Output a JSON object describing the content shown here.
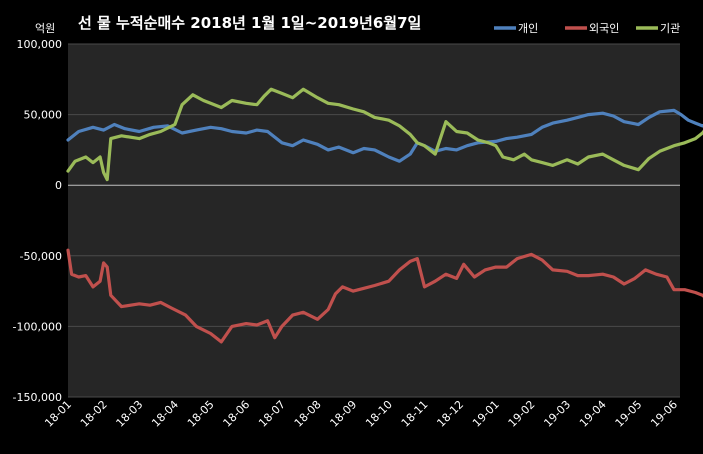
{
  "chart_data": {
    "type": "line",
    "title": "선 물 누적순매수 2018년 1월 1일~2019년6월7일",
    "unit_label": "억원",
    "ylim": [
      -150000,
      100000
    ],
    "yticks": [
      100000,
      50000,
      0,
      -50000,
      -100000,
      -150000
    ],
    "ytick_labels": [
      "100,000",
      "50,000",
      "0",
      "-50,000",
      "-100,000",
      "-150,000"
    ],
    "x_tick_labels": [
      "18-01",
      "18-02",
      "18-03",
      "18-04",
      "18-05",
      "18-06",
      "18-07",
      "18-08",
      "18-09",
      "18-10",
      "18-11",
      "18-12",
      "19-01",
      "19-02",
      "19-03",
      "19-04",
      "19-05",
      "19-06"
    ],
    "grid": true,
    "legend_position": "top-right",
    "series": [
      {
        "name": "개인",
        "color": "#4f81bd",
        "points": [
          [
            0,
            32000
          ],
          [
            0.3,
            38000
          ],
          [
            0.7,
            41000
          ],
          [
            1.0,
            39000
          ],
          [
            1.3,
            43000
          ],
          [
            1.6,
            40000
          ],
          [
            2.0,
            38000
          ],
          [
            2.4,
            41000
          ],
          [
            2.8,
            42000
          ],
          [
            3.2,
            37000
          ],
          [
            3.6,
            39000
          ],
          [
            4.0,
            41000
          ],
          [
            4.3,
            40000
          ],
          [
            4.6,
            38000
          ],
          [
            5.0,
            37000
          ],
          [
            5.3,
            39000
          ],
          [
            5.6,
            38000
          ],
          [
            6.0,
            30000
          ],
          [
            6.3,
            28000
          ],
          [
            6.6,
            32000
          ],
          [
            7.0,
            29000
          ],
          [
            7.3,
            25000
          ],
          [
            7.6,
            27000
          ],
          [
            8.0,
            23000
          ],
          [
            8.3,
            26000
          ],
          [
            8.6,
            25000
          ],
          [
            9.0,
            20000
          ],
          [
            9.3,
            17000
          ],
          [
            9.6,
            22000
          ],
          [
            9.8,
            30000
          ],
          [
            10.0,
            28000
          ],
          [
            10.3,
            24000
          ],
          [
            10.6,
            26000
          ],
          [
            10.9,
            25000
          ],
          [
            11.2,
            28000
          ],
          [
            11.5,
            30000
          ],
          [
            12.0,
            31000
          ],
          [
            12.3,
            33000
          ],
          [
            12.6,
            34000
          ],
          [
            13.0,
            36000
          ],
          [
            13.3,
            41000
          ],
          [
            13.6,
            44000
          ],
          [
            14.0,
            46000
          ],
          [
            14.3,
            48000
          ],
          [
            14.6,
            50000
          ],
          [
            15.0,
            51000
          ],
          [
            15.3,
            49000
          ],
          [
            15.6,
            45000
          ],
          [
            16.0,
            43000
          ],
          [
            16.3,
            48000
          ],
          [
            16.6,
            52000
          ],
          [
            17.0,
            53000
          ],
          [
            17.2,
            50000
          ],
          [
            17.4,
            46000
          ],
          [
            17.6,
            44000
          ],
          [
            17.8,
            42000
          ],
          [
            17.9,
            43000
          ]
        ]
      },
      {
        "name": "외국인",
        "color": "#c0504d",
        "points": [
          [
            0,
            -46000
          ],
          [
            0.1,
            -63000
          ],
          [
            0.3,
            -65000
          ],
          [
            0.5,
            -64000
          ],
          [
            0.7,
            -72000
          ],
          [
            0.9,
            -68000
          ],
          [
            1.0,
            -55000
          ],
          [
            1.1,
            -58000
          ],
          [
            1.2,
            -78000
          ],
          [
            1.5,
            -86000
          ],
          [
            2.0,
            -84000
          ],
          [
            2.3,
            -85000
          ],
          [
            2.6,
            -83000
          ],
          [
            2.9,
            -87000
          ],
          [
            3.3,
            -92000
          ],
          [
            3.6,
            -100000
          ],
          [
            4.0,
            -105000
          ],
          [
            4.3,
            -111000
          ],
          [
            4.6,
            -100000
          ],
          [
            5.0,
            -98000
          ],
          [
            5.3,
            -99000
          ],
          [
            5.6,
            -96000
          ],
          [
            5.8,
            -108000
          ],
          [
            6.0,
            -100000
          ],
          [
            6.3,
            -92000
          ],
          [
            6.6,
            -90000
          ],
          [
            7.0,
            -95000
          ],
          [
            7.3,
            -88000
          ],
          [
            7.5,
            -77000
          ],
          [
            7.7,
            -72000
          ],
          [
            8.0,
            -75000
          ],
          [
            8.3,
            -73000
          ],
          [
            8.6,
            -71000
          ],
          [
            9.0,
            -68000
          ],
          [
            9.3,
            -60000
          ],
          [
            9.6,
            -54000
          ],
          [
            9.8,
            -52000
          ],
          [
            10.0,
            -72000
          ],
          [
            10.3,
            -68000
          ],
          [
            10.6,
            -63000
          ],
          [
            10.9,
            -66000
          ],
          [
            11.1,
            -56000
          ],
          [
            11.4,
            -65000
          ],
          [
            11.7,
            -60000
          ],
          [
            12.0,
            -58000
          ],
          [
            12.3,
            -58000
          ],
          [
            12.6,
            -52000
          ],
          [
            13.0,
            -49000
          ],
          [
            13.3,
            -53000
          ],
          [
            13.6,
            -60000
          ],
          [
            14.0,
            -61000
          ],
          [
            14.3,
            -64000
          ],
          [
            14.6,
            -64000
          ],
          [
            15.0,
            -63000
          ],
          [
            15.3,
            -65000
          ],
          [
            15.6,
            -70000
          ],
          [
            15.9,
            -66000
          ],
          [
            16.2,
            -60000
          ],
          [
            16.5,
            -63000
          ],
          [
            16.8,
            -65000
          ],
          [
            17.0,
            -74000
          ],
          [
            17.3,
            -74000
          ],
          [
            17.6,
            -76000
          ],
          [
            17.8,
            -78000
          ],
          [
            17.9,
            -80000
          ]
        ]
      },
      {
        "name": "기관",
        "color": "#9bbb59",
        "points": [
          [
            0,
            10000
          ],
          [
            0.2,
            17000
          ],
          [
            0.5,
            20000
          ],
          [
            0.7,
            16000
          ],
          [
            0.9,
            20000
          ],
          [
            1.0,
            9000
          ],
          [
            1.1,
            4000
          ],
          [
            1.2,
            33000
          ],
          [
            1.5,
            35000
          ],
          [
            2.0,
            33000
          ],
          [
            2.3,
            36000
          ],
          [
            2.6,
            38000
          ],
          [
            3.0,
            43000
          ],
          [
            3.2,
            57000
          ],
          [
            3.5,
            64000
          ],
          [
            3.8,
            60000
          ],
          [
            4.0,
            58000
          ],
          [
            4.3,
            55000
          ],
          [
            4.6,
            60000
          ],
          [
            5.0,
            58000
          ],
          [
            5.3,
            57000
          ],
          [
            5.5,
            63000
          ],
          [
            5.7,
            68000
          ],
          [
            6.0,
            65000
          ],
          [
            6.3,
            62000
          ],
          [
            6.6,
            68000
          ],
          [
            7.0,
            62000
          ],
          [
            7.3,
            58000
          ],
          [
            7.6,
            57000
          ],
          [
            8.0,
            54000
          ],
          [
            8.3,
            52000
          ],
          [
            8.6,
            48000
          ],
          [
            9.0,
            46000
          ],
          [
            9.3,
            42000
          ],
          [
            9.6,
            36000
          ],
          [
            9.8,
            30000
          ],
          [
            10.0,
            28000
          ],
          [
            10.3,
            22000
          ],
          [
            10.6,
            45000
          ],
          [
            10.9,
            38000
          ],
          [
            11.2,
            37000
          ],
          [
            11.5,
            32000
          ],
          [
            11.8,
            30000
          ],
          [
            12.0,
            28000
          ],
          [
            12.2,
            20000
          ],
          [
            12.5,
            18000
          ],
          [
            12.8,
            22000
          ],
          [
            13.0,
            18000
          ],
          [
            13.3,
            16000
          ],
          [
            13.6,
            14000
          ],
          [
            14.0,
            18000
          ],
          [
            14.3,
            15000
          ],
          [
            14.6,
            20000
          ],
          [
            15.0,
            22000
          ],
          [
            15.3,
            18000
          ],
          [
            15.6,
            14000
          ],
          [
            16.0,
            11000
          ],
          [
            16.3,
            19000
          ],
          [
            16.6,
            24000
          ],
          [
            17.0,
            28000
          ],
          [
            17.3,
            30000
          ],
          [
            17.6,
            33000
          ],
          [
            17.8,
            37000
          ],
          [
            17.9,
            40000
          ]
        ]
      }
    ]
  }
}
